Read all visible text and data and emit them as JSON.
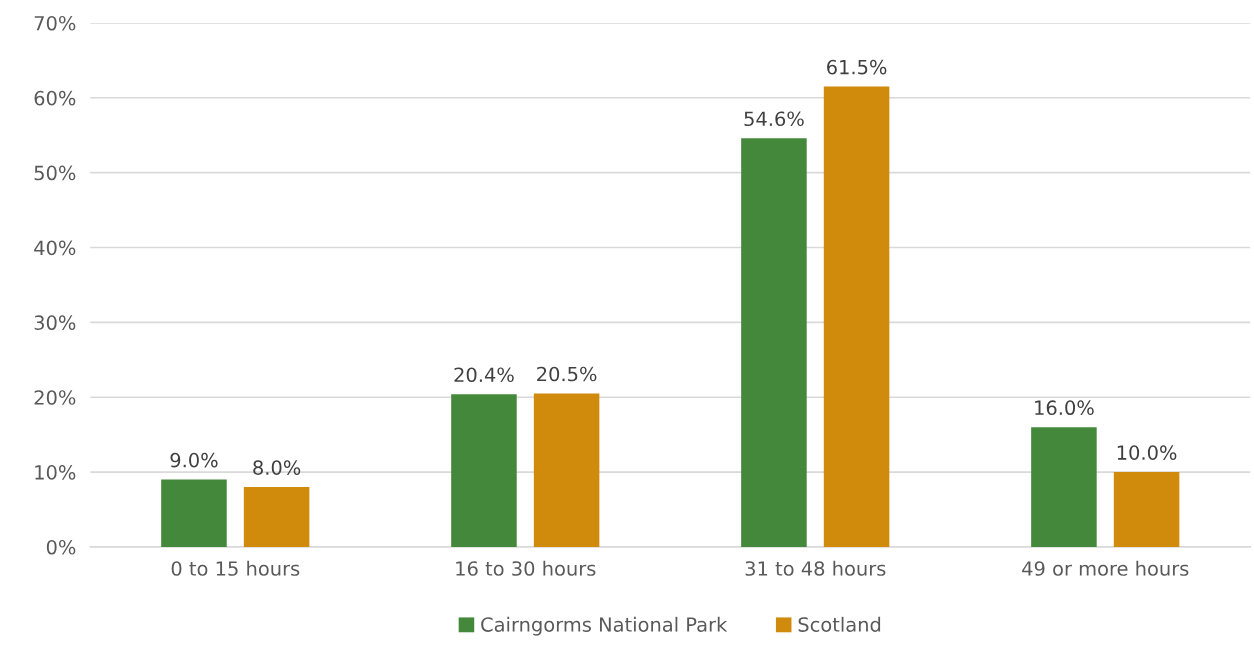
{
  "chart_data": {
    "type": "bar",
    "categories": [
      "0 to 15 hours",
      "16 to 30 hours",
      "31 to 48 hours",
      "49 or more hours"
    ],
    "series": [
      {
        "name": "Cairngorms National Park",
        "color": "#43883b",
        "values": [
          9.0,
          20.4,
          54.6,
          16.0
        ],
        "value_labels": [
          "9.0%",
          "20.4%",
          "54.6%",
          "16.0%"
        ]
      },
      {
        "name": "Scotland",
        "color": "#d08a0c",
        "values": [
          8.0,
          20.5,
          61.5,
          10.0
        ],
        "value_labels": [
          "8.0%",
          "20.5%",
          "61.5%",
          "10.0%"
        ]
      }
    ],
    "ylim": [
      0,
      70
    ],
    "yticks": [
      {
        "value": 0,
        "label": "0%"
      },
      {
        "value": 10,
        "label": "10%"
      },
      {
        "value": 20,
        "label": "20%"
      },
      {
        "value": 30,
        "label": "30%"
      },
      {
        "value": 40,
        "label": "40%"
      },
      {
        "value": 50,
        "label": "50%"
      },
      {
        "value": 60,
        "label": "60%"
      },
      {
        "value": 70,
        "label": "70%"
      }
    ],
    "grid": "y",
    "legend": "bottom"
  }
}
